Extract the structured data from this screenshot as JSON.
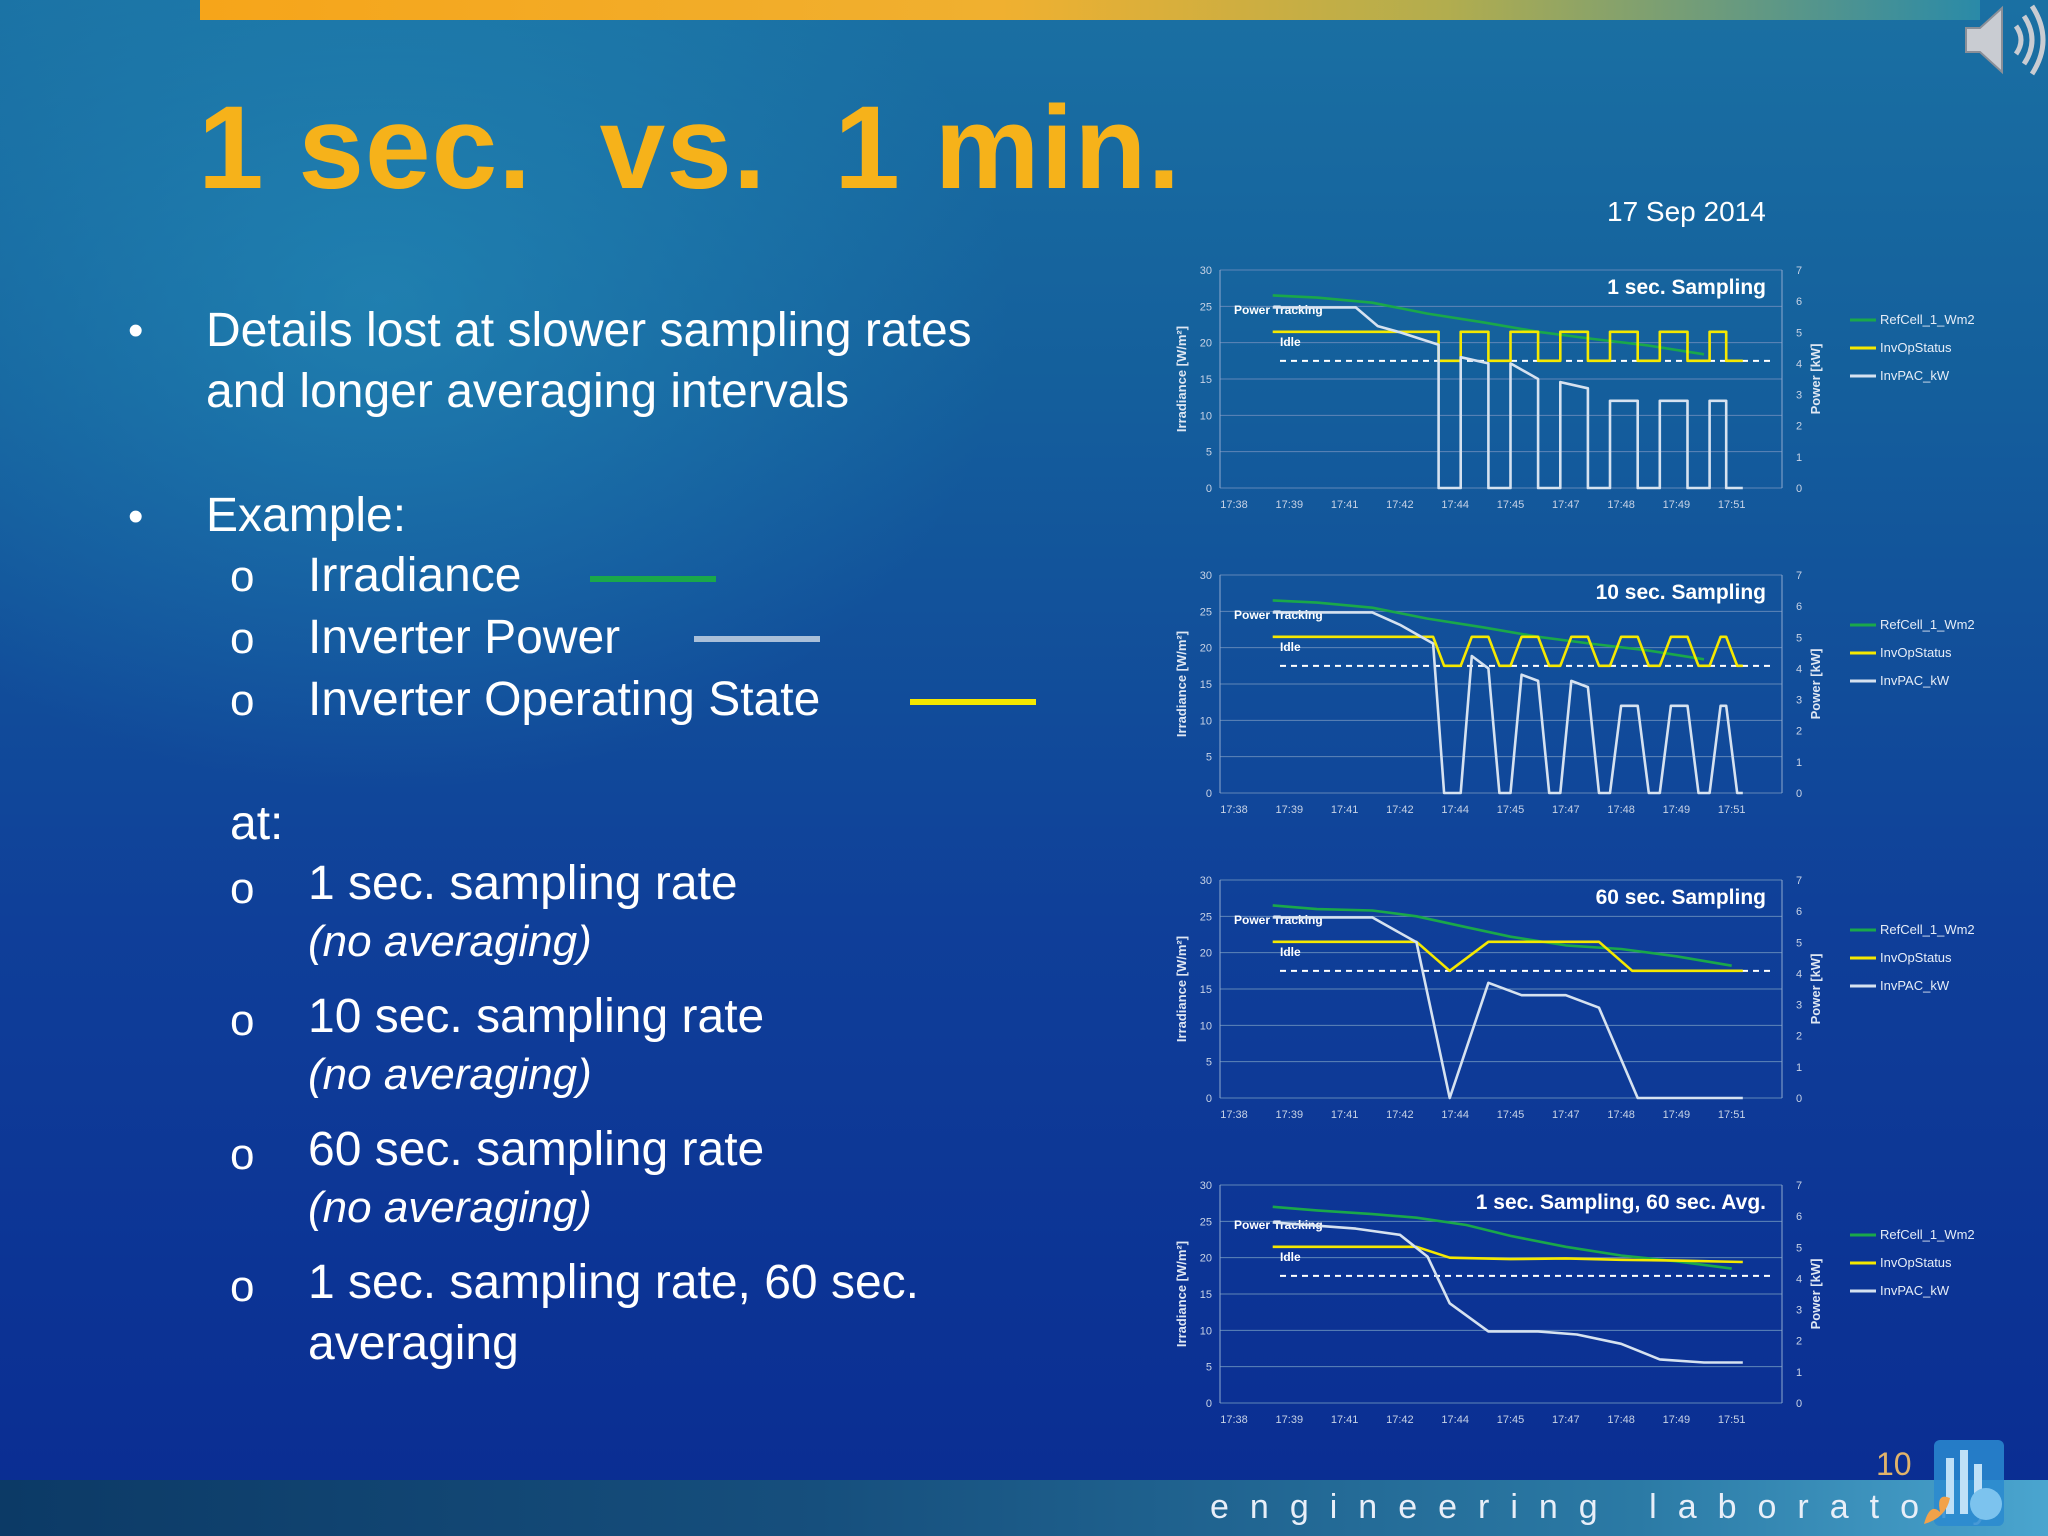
{
  "slide": {
    "title": "1 sec.  vs.  1 min.",
    "date": "17 Sep 2014",
    "page_number": "10",
    "footer": "engineering laboratory"
  },
  "bullets": {
    "b1_line1": "Details lost at slower sampling rates",
    "b1_line2": "and longer averaging intervals",
    "b2": "Example:",
    "legend_items": [
      {
        "label": "Irradiance",
        "color": "#1aa84a"
      },
      {
        "label": "Inverter Power",
        "color": "#a9bfd9"
      },
      {
        "label": "Inverter Operating State",
        "color": "#f5e800"
      }
    ],
    "at": "at:",
    "rates": [
      {
        "line1": "1 sec. sampling rate",
        "line2": "(no averaging)"
      },
      {
        "line1": "10 sec. sampling rate",
        "line2": "(no averaging)"
      },
      {
        "line1": "60 sec. sampling rate",
        "line2": "(no averaging)"
      },
      {
        "line1": "1 sec. sampling rate, 60 sec.",
        "line2": "averaging"
      }
    ],
    "bullet_glyph": "•",
    "sub_glyph": "o"
  },
  "chart_data": [
    {
      "type": "line",
      "title": "1 sec. Sampling",
      "x": [
        "17:38",
        "17:39",
        "17:41",
        "17:42",
        "17:44",
        "17:45",
        "17:47",
        "17:48",
        "17:49",
        "17:51"
      ],
      "ylabel": "Irradiance [W/m²]",
      "ylabel_right": "Power [kW]",
      "ylim": [
        0,
        30
      ],
      "ylim_right": [
        0,
        7
      ],
      "yticks": [
        0,
        5,
        10,
        15,
        20,
        25,
        30
      ],
      "yticks_right": [
        0,
        1,
        2,
        3,
        4,
        5,
        6,
        7
      ],
      "annotations": [
        "Power Tracking",
        "Idle"
      ],
      "legend": [
        "RefCell_1_Wm2",
        "InvOpStatus",
        "InvPAC_kW"
      ],
      "legend_position": "right",
      "series": [
        {
          "name": "RefCell_1_Wm2",
          "color": "#1aa84a",
          "points": [
            [
              0.7,
              26.5
            ],
            [
              1.5,
              26.2
            ],
            [
              2.5,
              25.5
            ],
            [
              3.5,
              24
            ],
            [
              4.5,
              22.8
            ],
            [
              5.5,
              21.5
            ],
            [
              6.5,
              20.5
            ],
            [
              7.5,
              19.6
            ],
            [
              8.5,
              18.4
            ]
          ]
        },
        {
          "name": "InvOpStatus",
          "color": "#f5e800",
          "points": [
            [
              0.7,
              21.5
            ],
            [
              3.7,
              21.5
            ],
            [
              3.7,
              17.5
            ],
            [
              4.1,
              17.5
            ],
            [
              4.1,
              21.5
            ],
            [
              4.6,
              21.5
            ],
            [
              4.6,
              17.5
            ],
            [
              5.0,
              17.5
            ],
            [
              5.0,
              21.5
            ],
            [
              5.5,
              21.5
            ],
            [
              5.5,
              17.5
            ],
            [
              5.9,
              17.5
            ],
            [
              5.9,
              21.5
            ],
            [
              6.4,
              21.5
            ],
            [
              6.4,
              17.5
            ],
            [
              6.8,
              17.5
            ],
            [
              6.8,
              21.5
            ],
            [
              7.3,
              21.5
            ],
            [
              7.3,
              17.5
            ],
            [
              7.7,
              17.5
            ],
            [
              7.7,
              21.5
            ],
            [
              8.2,
              21.5
            ],
            [
              8.2,
              17.5
            ],
            [
              8.6,
              17.5
            ],
            [
              8.6,
              21.5
            ],
            [
              8.9,
              21.5
            ],
            [
              8.9,
              17.5
            ],
            [
              9.2,
              17.5
            ]
          ]
        },
        {
          "name": "InvPAC_kW",
          "color": "#d6e2f0",
          "points": [
            [
              0.7,
              5.8
            ],
            [
              2.2,
              5.8
            ],
            [
              2.6,
              5.2
            ],
            [
              3.0,
              5.0
            ],
            [
              3.7,
              4.6
            ],
            [
              3.7,
              0
            ],
            [
              4.1,
              0
            ],
            [
              4.1,
              4.2
            ],
            [
              4.6,
              4.0
            ],
            [
              4.6,
              0
            ],
            [
              5.0,
              0
            ],
            [
              5.0,
              4.0
            ],
            [
              5.5,
              3.5
            ],
            [
              5.5,
              0
            ],
            [
              5.9,
              0
            ],
            [
              5.9,
              3.4
            ],
            [
              6.4,
              3.2
            ],
            [
              6.4,
              0
            ],
            [
              6.8,
              0
            ],
            [
              6.8,
              2.8
            ],
            [
              7.3,
              2.8
            ],
            [
              7.3,
              0
            ],
            [
              7.7,
              0
            ],
            [
              7.7,
              2.8
            ],
            [
              8.2,
              2.8
            ],
            [
              8.2,
              0
            ],
            [
              8.6,
              0
            ],
            [
              8.6,
              2.8
            ],
            [
              8.9,
              2.8
            ],
            [
              8.9,
              0
            ],
            [
              9.2,
              0
            ]
          ]
        }
      ]
    },
    {
      "type": "line",
      "title": "10 sec. Sampling",
      "x": [
        "17:38",
        "17:39",
        "17:41",
        "17:42",
        "17:44",
        "17:45",
        "17:47",
        "17:48",
        "17:49",
        "17:51"
      ],
      "ylabel": "Irradiance [W/m²]",
      "ylabel_right": "Power [kW]",
      "ylim": [
        0,
        30
      ],
      "ylim_right": [
        0,
        7
      ],
      "yticks": [
        0,
        5,
        10,
        15,
        20,
        25,
        30
      ],
      "yticks_right": [
        0,
        1,
        2,
        3,
        4,
        5,
        6,
        7
      ],
      "annotations": [
        "Power Tracking",
        "Idle"
      ],
      "legend": [
        "RefCell_1_Wm2",
        "InvOpStatus",
        "InvPAC_kW"
      ],
      "legend_position": "right",
      "series": [
        {
          "name": "RefCell_1_Wm2",
          "color": "#1aa84a",
          "points": [
            [
              0.7,
              26.5
            ],
            [
              1.5,
              26.2
            ],
            [
              2.5,
              25.5
            ],
            [
              3.5,
              24
            ],
            [
              4.5,
              22.8
            ],
            [
              5.5,
              21.5
            ],
            [
              6.5,
              20.5
            ],
            [
              7.5,
              19.6
            ],
            [
              8.5,
              18.4
            ]
          ]
        },
        {
          "name": "InvOpStatus",
          "color": "#f5e800",
          "points": [
            [
              0.7,
              21.5
            ],
            [
              3.6,
              21.5
            ],
            [
              3.8,
              17.5
            ],
            [
              4.1,
              17.5
            ],
            [
              4.3,
              21.5
            ],
            [
              4.6,
              21.5
            ],
            [
              4.8,
              17.5
            ],
            [
              5.0,
              17.5
            ],
            [
              5.2,
              21.5
            ],
            [
              5.5,
              21.5
            ],
            [
              5.7,
              17.5
            ],
            [
              5.9,
              17.5
            ],
            [
              6.1,
              21.5
            ],
            [
              6.4,
              21.5
            ],
            [
              6.6,
              17.5
            ],
            [
              6.8,
              17.5
            ],
            [
              7.0,
              21.5
            ],
            [
              7.3,
              21.5
            ],
            [
              7.5,
              17.5
            ],
            [
              7.7,
              17.5
            ],
            [
              7.9,
              21.5
            ],
            [
              8.2,
              21.5
            ],
            [
              8.4,
              17.5
            ],
            [
              8.6,
              17.5
            ],
            [
              8.8,
              21.5
            ],
            [
              8.9,
              21.5
            ],
            [
              9.1,
              17.5
            ],
            [
              9.2,
              17.5
            ]
          ]
        },
        {
          "name": "InvPAC_kW",
          "color": "#d6e2f0",
          "points": [
            [
              0.7,
              5.8
            ],
            [
              2.5,
              5.8
            ],
            [
              3.0,
              5.4
            ],
            [
              3.6,
              4.8
            ],
            [
              3.8,
              0
            ],
            [
              4.1,
              0
            ],
            [
              4.3,
              4.4
            ],
            [
              4.6,
              4.0
            ],
            [
              4.8,
              0
            ],
            [
              5.0,
              0
            ],
            [
              5.2,
              3.8
            ],
            [
              5.5,
              3.6
            ],
            [
              5.7,
              0
            ],
            [
              5.9,
              0
            ],
            [
              6.1,
              3.6
            ],
            [
              6.4,
              3.4
            ],
            [
              6.6,
              0
            ],
            [
              6.8,
              0
            ],
            [
              7.0,
              2.8
            ],
            [
              7.3,
              2.8
            ],
            [
              7.5,
              0
            ],
            [
              7.7,
              0
            ],
            [
              7.9,
              2.8
            ],
            [
              8.2,
              2.8
            ],
            [
              8.4,
              0
            ],
            [
              8.6,
              0
            ],
            [
              8.8,
              2.8
            ],
            [
              8.9,
              2.8
            ],
            [
              9.1,
              0
            ],
            [
              9.2,
              0
            ]
          ]
        }
      ]
    },
    {
      "type": "line",
      "title": "60 sec. Sampling",
      "x": [
        "17:38",
        "17:39",
        "17:41",
        "17:42",
        "17:44",
        "17:45",
        "17:47",
        "17:48",
        "17:49",
        "17:51"
      ],
      "ylabel": "Irradiance [W/m²]",
      "ylabel_right": "Power [kW]",
      "ylim": [
        0,
        30
      ],
      "ylim_right": [
        0,
        7
      ],
      "yticks": [
        0,
        5,
        10,
        15,
        20,
        25,
        30
      ],
      "yticks_right": [
        0,
        1,
        2,
        3,
        4,
        5,
        6,
        7
      ],
      "annotations": [
        "Power Tracking",
        "Idle"
      ],
      "legend": [
        "RefCell_1_Wm2",
        "InvOpStatus",
        "InvPAC_kW"
      ],
      "legend_position": "right",
      "series": [
        {
          "name": "RefCell_1_Wm2",
          "color": "#1aa84a",
          "points": [
            [
              0.7,
              26.5
            ],
            [
              1.5,
              26
            ],
            [
              2.5,
              25.8
            ],
            [
              3.3,
              25
            ],
            [
              4.2,
              23.5
            ],
            [
              5.0,
              22.2
            ],
            [
              6.0,
              21
            ],
            [
              7.0,
              20.5
            ],
            [
              8.0,
              19.5
            ],
            [
              9.0,
              18.2
            ]
          ]
        },
        {
          "name": "InvOpStatus",
          "color": "#f5e800",
          "points": [
            [
              0.7,
              21.5
            ],
            [
              3.3,
              21.5
            ],
            [
              3.9,
              17.5
            ],
            [
              4.6,
              21.5
            ],
            [
              6.6,
              21.5
            ],
            [
              7.2,
              17.5
            ],
            [
              9.2,
              17.5
            ]
          ]
        },
        {
          "name": "InvPAC_kW",
          "color": "#d6e2f0",
          "points": [
            [
              0.7,
              5.8
            ],
            [
              2.5,
              5.8
            ],
            [
              3.3,
              5.0
            ],
            [
              3.9,
              0
            ],
            [
              4.6,
              3.7
            ],
            [
              5.2,
              3.3
            ],
            [
              6.0,
              3.3
            ],
            [
              6.6,
              2.9
            ],
            [
              7.3,
              0
            ],
            [
              9.2,
              0
            ]
          ]
        }
      ]
    },
    {
      "type": "line",
      "title": "1 sec. Sampling, 60 sec. Avg.",
      "x": [
        "17:38",
        "17:39",
        "17:41",
        "17:42",
        "17:44",
        "17:45",
        "17:47",
        "17:48",
        "17:49",
        "17:51"
      ],
      "ylabel": "Irradiance [W/m²]",
      "ylabel_right": "Power [kW]",
      "ylim": [
        0,
        30
      ],
      "ylim_right": [
        0,
        7
      ],
      "yticks": [
        0,
        5,
        10,
        15,
        20,
        25,
        30
      ],
      "yticks_right": [
        0,
        1,
        2,
        3,
        4,
        5,
        6,
        7
      ],
      "annotations": [
        "Power Tracking",
        "Idle"
      ],
      "legend": [
        "RefCell_1_Wm2",
        "InvOpStatus",
        "InvPAC_kW"
      ],
      "legend_position": "right",
      "series": [
        {
          "name": "RefCell_1_Wm2",
          "color": "#1aa84a",
          "points": [
            [
              0.7,
              27
            ],
            [
              1.5,
              26.5
            ],
            [
              2.5,
              26
            ],
            [
              3.3,
              25.5
            ],
            [
              4.2,
              24.5
            ],
            [
              5.0,
              23
            ],
            [
              6.0,
              21.5
            ],
            [
              7.0,
              20.3
            ],
            [
              8.0,
              19.5
            ],
            [
              9.0,
              18.5
            ]
          ]
        },
        {
          "name": "InvOpStatus",
          "color": "#f5e800",
          "points": [
            [
              0.7,
              21.5
            ],
            [
              3.3,
              21.5
            ],
            [
              3.9,
              20
            ],
            [
              5.0,
              19.8
            ],
            [
              6.0,
              19.9
            ],
            [
              7.0,
              19.7
            ],
            [
              8.0,
              19.6
            ],
            [
              9.2,
              19.4
            ]
          ]
        },
        {
          "name": "InvPAC_kW",
          "color": "#d6e2f0",
          "points": [
            [
              0.7,
              5.8
            ],
            [
              2.2,
              5.6
            ],
            [
              3.0,
              5.4
            ],
            [
              3.5,
              4.7
            ],
            [
              3.9,
              3.2
            ],
            [
              4.6,
              2.3
            ],
            [
              5.5,
              2.3
            ],
            [
              6.2,
              2.2
            ],
            [
              7.0,
              1.9
            ],
            [
              7.7,
              1.4
            ],
            [
              8.5,
              1.3
            ],
            [
              9.2,
              1.3
            ]
          ]
        }
      ]
    }
  ]
}
